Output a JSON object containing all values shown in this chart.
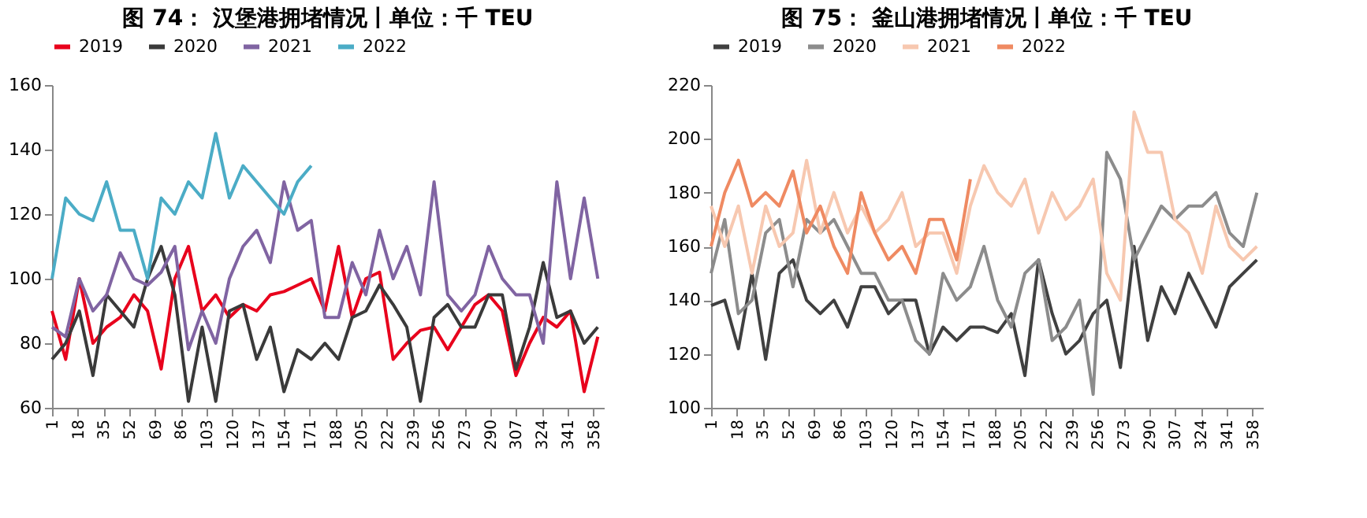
{
  "chart_data": [
    {
      "type": "line",
      "title": "图 74： 汉堡港拥堵情况丨单位：千 TEU",
      "legend": "top",
      "grid": false,
      "x": [
        1,
        10,
        19,
        28,
        37,
        46,
        55,
        64,
        73,
        82,
        91,
        100,
        109,
        118,
        127,
        136,
        145,
        154,
        163,
        172,
        181,
        190,
        199,
        208,
        217,
        226,
        235,
        244,
        253,
        262,
        271,
        280,
        289,
        298,
        307,
        316,
        325,
        334,
        343,
        352,
        361
      ],
      "xlim": [
        1,
        365
      ],
      "xticks": [
        1,
        18,
        35,
        52,
        69,
        86,
        103,
        120,
        137,
        154,
        171,
        188,
        205,
        222,
        239,
        256,
        273,
        290,
        307,
        324,
        341,
        358
      ],
      "ylim": [
        60,
        160
      ],
      "yticks": [
        60,
        80,
        100,
        120,
        140,
        160
      ],
      "series": [
        {
          "name": "2019",
          "color": "#e8001c",
          "values": [
            90,
            75,
            100,
            80,
            85,
            88,
            95,
            90,
            72,
            100,
            110,
            90,
            95,
            88,
            92,
            90,
            95,
            96,
            98,
            100,
            90,
            110,
            88,
            100,
            102,
            75,
            80,
            84,
            85,
            78,
            85,
            92,
            95,
            90,
            70,
            80,
            88,
            85,
            90,
            65,
            82
          ]
        },
        {
          "name": "2020",
          "color": "#3a3a3a",
          "values": [
            75,
            80,
            90,
            70,
            95,
            90,
            85,
            100,
            110,
            95,
            62,
            85,
            62,
            90,
            92,
            75,
            85,
            65,
            78,
            75,
            80,
            75,
            88,
            90,
            98,
            92,
            85,
            62,
            88,
            92,
            85,
            85,
            95,
            95,
            72,
            85,
            105,
            88,
            90,
            80,
            85
          ]
        },
        {
          "name": "2021",
          "color": "#8064a2",
          "values": [
            85,
            82,
            100,
            90,
            95,
            108,
            100,
            98,
            102,
            110,
            78,
            90,
            80,
            100,
            110,
            115,
            105,
            130,
            115,
            118,
            88,
            88,
            105,
            95,
            115,
            100,
            110,
            95,
            130,
            95,
            90,
            95,
            110,
            100,
            95,
            95,
            80,
            130,
            100,
            125,
            100
          ]
        },
        {
          "name": "2022",
          "color": "#4bacc6",
          "values": [
            100,
            125,
            120,
            118,
            130,
            115,
            115,
            100,
            125,
            120,
            130,
            125,
            145,
            125,
            135,
            130,
            125,
            120,
            130,
            135,
            null,
            null,
            null,
            null,
            null,
            null,
            null,
            null,
            null,
            null,
            null,
            null,
            null,
            null,
            null,
            null,
            null,
            null,
            null,
            null,
            null
          ]
        }
      ]
    },
    {
      "type": "line",
      "title": "图 75： 釜山港拥堵情况丨单位：千 TEU",
      "legend": "top",
      "grid": false,
      "x": [
        1,
        10,
        19,
        28,
        37,
        46,
        55,
        64,
        73,
        82,
        91,
        100,
        109,
        118,
        127,
        136,
        145,
        154,
        163,
        172,
        181,
        190,
        199,
        208,
        217,
        226,
        235,
        244,
        253,
        262,
        271,
        280,
        289,
        298,
        307,
        316,
        325,
        334,
        343,
        352,
        361
      ],
      "xlim": [
        1,
        365
      ],
      "xticks": [
        1,
        18,
        35,
        52,
        69,
        86,
        103,
        120,
        137,
        154,
        171,
        188,
        205,
        222,
        239,
        256,
        273,
        290,
        307,
        324,
        341,
        358
      ],
      "ylim": [
        100,
        220
      ],
      "yticks": [
        100,
        120,
        140,
        160,
        180,
        200,
        220
      ],
      "series": [
        {
          "name": "2019",
          "color": "#404040",
          "values": [
            138,
            140,
            122,
            150,
            118,
            150,
            155,
            140,
            135,
            140,
            130,
            145,
            145,
            135,
            140,
            140,
            120,
            130,
            125,
            130,
            130,
            128,
            135,
            112,
            155,
            135,
            120,
            125,
            135,
            140,
            115,
            160,
            125,
            145,
            135,
            150,
            140,
            130,
            145,
            150,
            155
          ]
        },
        {
          "name": "2020",
          "color": "#8c8c8c",
          "values": [
            150,
            170,
            135,
            140,
            165,
            170,
            145,
            170,
            165,
            170,
            160,
            150,
            150,
            140,
            140,
            125,
            120,
            150,
            140,
            145,
            160,
            140,
            130,
            150,
            155,
            125,
            130,
            140,
            105,
            195,
            185,
            155,
            165,
            175,
            170,
            175,
            175,
            180,
            165,
            160,
            180
          ]
        },
        {
          "name": "2021",
          "color": "#f7c8b0",
          "values": [
            175,
            160,
            175,
            150,
            175,
            160,
            165,
            192,
            165,
            180,
            165,
            175,
            165,
            170,
            180,
            160,
            165,
            165,
            150,
            175,
            190,
            180,
            175,
            185,
            165,
            180,
            170,
            175,
            185,
            150,
            140,
            210,
            195,
            195,
            170,
            165,
            150,
            175,
            160,
            155,
            160
          ]
        },
        {
          "name": "2022",
          "color": "#ef8a62",
          "values": [
            160,
            180,
            192,
            175,
            180,
            175,
            188,
            165,
            175,
            160,
            150,
            180,
            165,
            155,
            160,
            150,
            170,
            170,
            155,
            185,
            null,
            null,
            null,
            null,
            null,
            null,
            null,
            null,
            null,
            null,
            null,
            null,
            null,
            null,
            null,
            null,
            null,
            null,
            null,
            null,
            null
          ]
        }
      ]
    }
  ]
}
